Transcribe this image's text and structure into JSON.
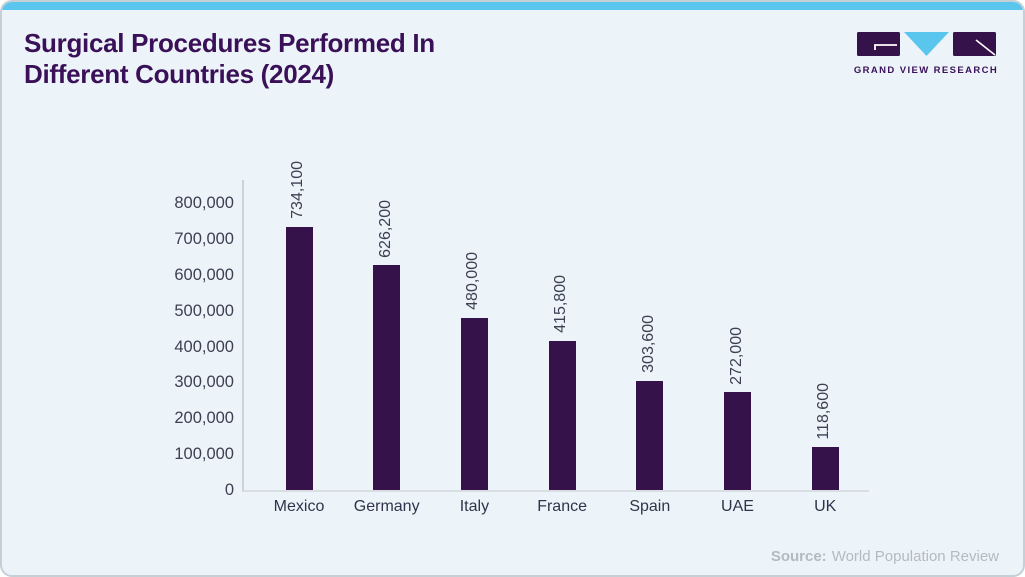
{
  "header": {
    "title_line1": "Surgical Procedures Performed In",
    "title_line2": "Different Countries (2024)",
    "logo": {
      "brand": "GRAND VIEW RESEARCH"
    }
  },
  "footer": {
    "source_label": "Source:",
    "source_text": "World Population Review"
  },
  "colors": {
    "accent_blue": "#5bc6ed",
    "brand_purple": "#3a1158",
    "bar_purple": "#36124a",
    "axis_gray": "#ccd3d8",
    "tick_text": "#3c4052",
    "source_gray": "#b3bac2",
    "card_background": "#edf4f9"
  },
  "chart_data": {
    "type": "bar",
    "title": "Surgical Procedures Performed In Different Countries (2024)",
    "categories": [
      "Mexico",
      "Germany",
      "Italy",
      "France",
      "Spain",
      "UAE",
      "UK"
    ],
    "values": [
      734100,
      626200,
      480000,
      415800,
      303600,
      272000,
      118600
    ],
    "value_labels": [
      "734,100",
      "626,200",
      "480,000",
      "415,800",
      "303,600",
      "272,000",
      "118,600"
    ],
    "xlabel": "",
    "ylabel": "",
    "ylim": [
      0,
      800000
    ],
    "ytick_step": 100000,
    "ytick_labels": [
      "0",
      "100,000",
      "200,000",
      "300,000",
      "400,000",
      "500,000",
      "600,000",
      "700,000",
      "800,000"
    ],
    "grid": false,
    "legend": false,
    "bar_color": "#36124a",
    "value_label_rotation": "vertical"
  }
}
